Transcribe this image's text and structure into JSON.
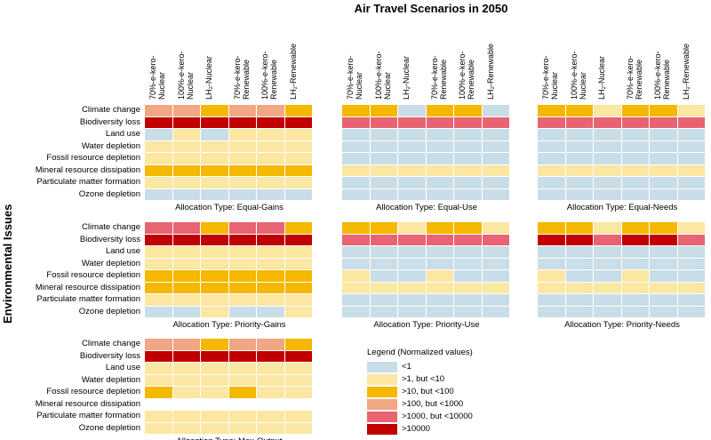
{
  "title": "Air Travel Scenarios in 2050",
  "y_axis_label": "Environmental Issues",
  "legend": {
    "title": "Legend (Normalized values)",
    "items": [
      {
        "label": "<1",
        "color": "#c9dde9"
      },
      {
        "label": ">1, but <10",
        "color": "#fbe6a2"
      },
      {
        "label": ">10, but <100",
        "color": "#f5b800"
      },
      {
        "label": ">100, but <1000",
        "color": "#f0a784"
      },
      {
        "label": ">1000, but <10000",
        "color": "#e86473"
      },
      {
        "label": ">10000",
        "color": "#c00000"
      }
    ]
  },
  "chart_data": {
    "type": "heatmap",
    "rows": [
      "Climate change",
      "Biodiversity loss",
      "Land use",
      "Water depletion",
      "Fossil resource depletion",
      "Mineral resource dissipation",
      "Particulate matter formation",
      "Ozone depletion"
    ],
    "columns": [
      "70%-e-kero-Nuclear",
      "100%-e-kero-Nuclear",
      "LH₂-Nuclear",
      "70%-e-kero-Renewable",
      "100%-e-kero-Renewable",
      "LH₂-Renewable"
    ],
    "column_labels": [
      [
        "70%-e-kero-",
        "Nuclear"
      ],
      [
        "100%-e-kero-",
        "Nuclear"
      ],
      [
        "LH₂-Nuclear"
      ],
      [
        "70%-e-kero-",
        "Renewable"
      ],
      [
        "100%-e-kero-",
        "Renewable"
      ],
      [
        "LH₂-Renewable"
      ]
    ],
    "value_classes": [
      "<1",
      ">1, but <10",
      ">10, but <100",
      ">100, but <1000",
      ">1000, but <10000",
      ">10000"
    ],
    "panels": [
      {
        "title": "Allocation Type: Equal-Gains",
        "values": [
          [
            3,
            3,
            2,
            3,
            3,
            2
          ],
          [
            5,
            5,
            5,
            5,
            5,
            5
          ],
          [
            0,
            1,
            0,
            1,
            1,
            1
          ],
          [
            1,
            1,
            1,
            1,
            1,
            1
          ],
          [
            1,
            1,
            1,
            1,
            1,
            1
          ],
          [
            2,
            2,
            2,
            2,
            2,
            2
          ],
          [
            1,
            1,
            1,
            1,
            1,
            1
          ],
          [
            0,
            0,
            0,
            0,
            0,
            0
          ]
        ]
      },
      {
        "title": "Allocation Type: Equal-Use",
        "values": [
          [
            2,
            2,
            0,
            2,
            2,
            0
          ],
          [
            4,
            4,
            4,
            4,
            4,
            4
          ],
          [
            0,
            0,
            0,
            0,
            0,
            0
          ],
          [
            0,
            0,
            0,
            0,
            0,
            0
          ],
          [
            0,
            0,
            0,
            0,
            0,
            0
          ],
          [
            1,
            1,
            1,
            1,
            1,
            1
          ],
          [
            0,
            0,
            0,
            0,
            0,
            0
          ],
          [
            0,
            0,
            0,
            0,
            0,
            0
          ]
        ]
      },
      {
        "title": "Allocation Type: Equal-Needs",
        "values": [
          [
            2,
            2,
            1,
            2,
            2,
            1
          ],
          [
            4,
            4,
            4,
            4,
            4,
            4
          ],
          [
            0,
            0,
            0,
            0,
            0,
            0
          ],
          [
            0,
            0,
            0,
            0,
            0,
            0
          ],
          [
            0,
            0,
            0,
            0,
            0,
            0
          ],
          [
            1,
            1,
            1,
            1,
            1,
            1
          ],
          [
            0,
            0,
            0,
            0,
            0,
            0
          ],
          [
            0,
            0,
            0,
            0,
            0,
            0
          ]
        ]
      },
      {
        "title": "Allocation Type: Priority-Gains",
        "values": [
          [
            4,
            4,
            2,
            4,
            4,
            2
          ],
          [
            5,
            5,
            5,
            5,
            5,
            5
          ],
          [
            1,
            1,
            1,
            1,
            1,
            1
          ],
          [
            1,
            1,
            1,
            1,
            1,
            1
          ],
          [
            2,
            2,
            2,
            2,
            2,
            2
          ],
          [
            2,
            2,
            2,
            2,
            2,
            2
          ],
          [
            1,
            1,
            1,
            1,
            1,
            1
          ],
          [
            0,
            0,
            1,
            0,
            0,
            1
          ]
        ]
      },
      {
        "title": "Allocation Type: Priority-Use",
        "values": [
          [
            2,
            2,
            1,
            2,
            2,
            1
          ],
          [
            4,
            4,
            4,
            4,
            4,
            4
          ],
          [
            0,
            0,
            0,
            0,
            0,
            0
          ],
          [
            0,
            0,
            0,
            0,
            0,
            0
          ],
          [
            1,
            0,
            0,
            1,
            0,
            0
          ],
          [
            1,
            1,
            1,
            1,
            1,
            1
          ],
          [
            0,
            0,
            0,
            0,
            0,
            0
          ],
          [
            0,
            0,
            0,
            0,
            0,
            0
          ]
        ]
      },
      {
        "title": "Allocation Type: Priority-Needs",
        "values": [
          [
            2,
            2,
            1,
            2,
            2,
            1
          ],
          [
            5,
            5,
            4,
            5,
            5,
            4
          ],
          [
            0,
            0,
            0,
            0,
            0,
            0
          ],
          [
            0,
            0,
            0,
            0,
            0,
            0
          ],
          [
            1,
            0,
            0,
            1,
            0,
            0
          ],
          [
            1,
            1,
            1,
            1,
            1,
            1
          ],
          [
            0,
            0,
            0,
            0,
            0,
            0
          ],
          [
            0,
            0,
            0,
            0,
            0,
            0
          ]
        ]
      },
      {
        "title": "Allocation Type: Max-Output",
        "values": [
          [
            3,
            3,
            2,
            3,
            3,
            2
          ],
          [
            5,
            5,
            5,
            5,
            5,
            5
          ],
          [
            1,
            1,
            1,
            1,
            1,
            1
          ],
          [
            1,
            1,
            1,
            1,
            1,
            1
          ],
          [
            2,
            1,
            1,
            2,
            1,
            1
          ],
          [
            null,
            null,
            null,
            null,
            null,
            null
          ],
          [
            1,
            1,
            1,
            1,
            1,
            1
          ],
          [
            1,
            1,
            1,
            1,
            1,
            1
          ]
        ]
      }
    ]
  }
}
